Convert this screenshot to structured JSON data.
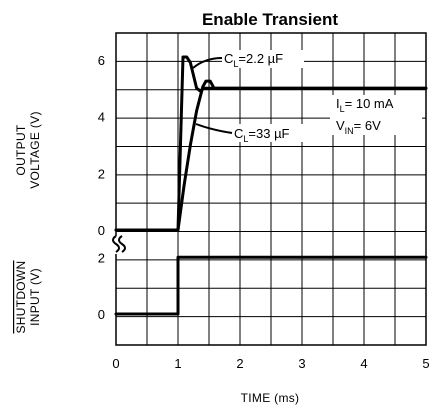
{
  "chart_data": {
    "type": "line",
    "title": "Enable Transient",
    "xlabel": "TIME (ms)",
    "x_ticks": [
      "0",
      "1",
      "2",
      "3",
      "4",
      "5"
    ],
    "xlim": [
      0,
      5
    ],
    "grid": true,
    "panels": [
      {
        "name": "output",
        "ylabel_lines": [
          "OUTPUT",
          "VOLTAGE (V)"
        ],
        "y_ticks": [
          "0",
          "2",
          "4",
          "6"
        ],
        "ylim": [
          0,
          7
        ],
        "series": [
          {
            "name": "CL = 2.2 µF",
            "points": [
              [
                0,
                0
              ],
              [
                1.0,
                0
              ],
              [
                1.08,
                6.1
              ],
              [
                1.14,
                6.1
              ],
              [
                1.2,
                5.9
              ],
              [
                1.3,
                5.0
              ],
              [
                1.36,
                4.9
              ],
              [
                1.42,
                5.0
              ],
              [
                1.5,
                5.0
              ],
              [
                1.6,
                5.0
              ],
              [
                5,
                5.0
              ]
            ]
          },
          {
            "name": "CL = 33 µF",
            "points": [
              [
                0,
                0
              ],
              [
                1.0,
                0
              ],
              [
                1.1,
                1.6
              ],
              [
                1.2,
                3.0
              ],
              [
                1.3,
                4.2
              ],
              [
                1.4,
                5.05
              ],
              [
                1.45,
                5.25
              ],
              [
                1.52,
                5.25
              ],
              [
                1.58,
                5.0
              ],
              [
                5,
                5.0
              ]
            ]
          }
        ],
        "annotations": [
          {
            "main": "C",
            "sub": "L",
            "rest": "=2.2 µF",
            "target": "CL = 2.2 µF"
          },
          {
            "main": "C",
            "sub": "L",
            "rest": "=33 µF",
            "target": "CL = 33 µF"
          },
          {
            "main": "I",
            "sub": "L",
            "rest": "= 10 mA"
          },
          {
            "main": "V",
            "sub": "IN",
            "rest": "= 6V"
          }
        ]
      },
      {
        "name": "shutdown",
        "ylabel_lines": [
          "SHUTDOWN",
          "INPUT (V)"
        ],
        "ylabel_overline": "SHUTDOWN",
        "y_ticks": [
          "0",
          "2"
        ],
        "ylim": [
          0,
          2.2
        ],
        "series": [
          {
            "name": "shutdown input",
            "points": [
              [
                0,
                0
              ],
              [
                1.0,
                0
              ],
              [
                1.0,
                2.0
              ],
              [
                5,
                2.0
              ]
            ]
          }
        ]
      }
    ]
  }
}
